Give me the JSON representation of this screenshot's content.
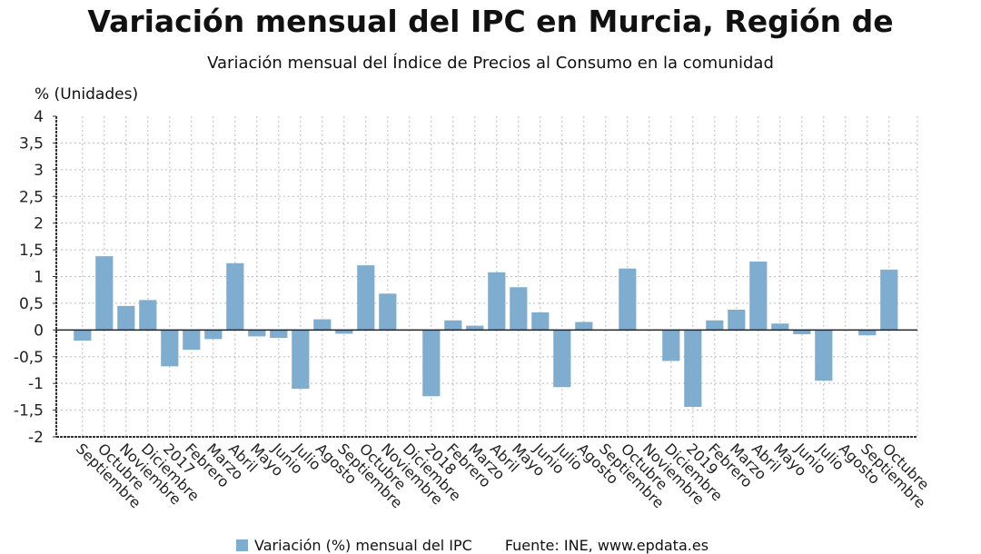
{
  "chart_data": {
    "type": "bar",
    "title": "Variación mensual del IPC en Murcia, Región de",
    "subtitle": "Variación mensual del Índice de Precios al Consumo en la comunidad",
    "ylabel": "% (Unidades)",
    "xlabel": "",
    "ylim": [
      -2,
      4
    ],
    "yticks": [
      "4",
      "3,5",
      "3",
      "2,5",
      "2",
      "1,5",
      "1",
      "0,5",
      "0",
      "-0,5",
      "-1",
      "-1,5",
      "-2"
    ],
    "grid": true,
    "categories": [
      "Septiembre",
      "Octubre",
      "Noviembre",
      "Diciembre",
      "2017",
      "Febrero",
      "Marzo",
      "Abril",
      "Mayo",
      "Junio",
      "Julio",
      "Agosto",
      "Septiembre",
      "Octubre",
      "Noviembre",
      "Diciembre",
      "2018",
      "Febrero",
      "Marzo",
      "Abril",
      "Mayo",
      "Junio",
      "Julio",
      "Agosto",
      "Septiembre",
      "Octubre",
      "Noviembre",
      "Diciembre",
      "2019",
      "Febrero",
      "Marzo",
      "Abril",
      "Mayo",
      "Junio",
      "Julio",
      "Agosto",
      "Septiembre",
      "Octubre"
    ],
    "series": [
      {
        "name": "Variación (%) mensual del IPC",
        "color": "#7eadcf",
        "values": [
          -0.2,
          1.38,
          0.45,
          0.56,
          -0.68,
          -0.37,
          -0.17,
          1.25,
          -0.12,
          -0.15,
          -1.1,
          0.2,
          -0.07,
          1.21,
          0.68,
          0.01,
          -1.24,
          0.18,
          0.08,
          1.08,
          0.8,
          0.33,
          -1.07,
          0.15,
          0.0,
          1.15,
          0.0,
          -0.58,
          -1.44,
          0.18,
          0.38,
          1.28,
          0.12,
          -0.08,
          -0.95,
          0.0,
          -0.1,
          1.13
        ]
      }
    ],
    "legend_position": "bottom"
  },
  "source": "Fuente: INE, www.epdata.es"
}
